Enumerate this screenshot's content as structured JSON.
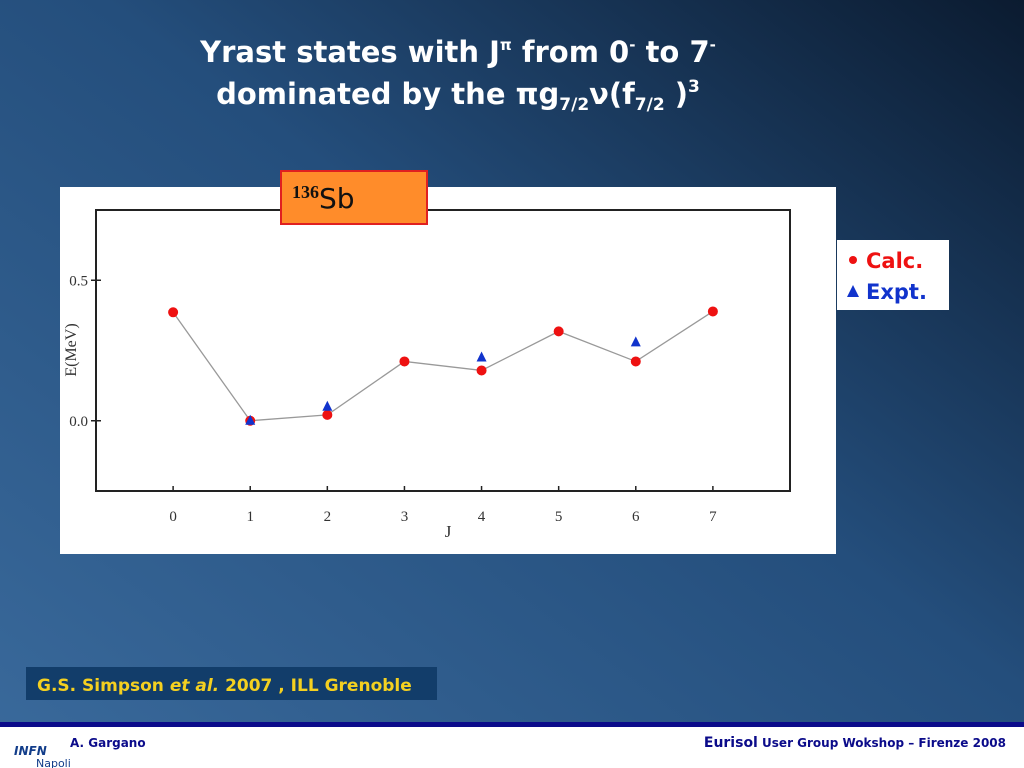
{
  "slide": {
    "title_line1": [
      "Yrast states with J",
      "π",
      " from 0",
      "-",
      " to 7",
      "-"
    ],
    "title_line2": [
      "dominated by the ",
      "πg",
      "7/2",
      "ν(f",
      "7/2",
      " )",
      "3"
    ],
    "citation": [
      "G.S. Simpson ",
      "et al.",
      " 2007 , ILL Grenoble"
    ],
    "author": "A. Gargano",
    "event": [
      "Eurisol",
      " User Group Wokshop – Firenze  2008"
    ],
    "logo": [
      "INFN",
      "Napoli"
    ]
  },
  "chart_data": {
    "type": "scatter",
    "label_mass": "136",
    "label_element": "Sb",
    "x_label": "J",
    "y_label": "E(MeV)",
    "x": [
      0,
      1,
      2,
      3,
      4,
      5,
      6,
      7
    ],
    "xlim": [
      -1,
      8
    ],
    "xticks": [
      0,
      1,
      2,
      3,
      4,
      5,
      6,
      7
    ],
    "ylim": [
      -0.25,
      0.75
    ],
    "yticks": [
      {
        "value": 0,
        "label": "0.0"
      },
      {
        "value": 0.5,
        "label": "0.5"
      }
    ],
    "grid": false,
    "series": [
      {
        "name": "Calc.",
        "color": "#ee1111",
        "marker": "circle",
        "line": true,
        "line_color": "#999999",
        "values": [
          0.386,
          0,
          0.021,
          0.211,
          0.179,
          0.318,
          0.211,
          0.389
        ]
      },
      {
        "name": "Expt.",
        "color": "#1133cc",
        "marker": "triangle",
        "line": false,
        "values": [
          null,
          0,
          0.05,
          null,
          0.225,
          null,
          0.279,
          null
        ]
      }
    ]
  }
}
